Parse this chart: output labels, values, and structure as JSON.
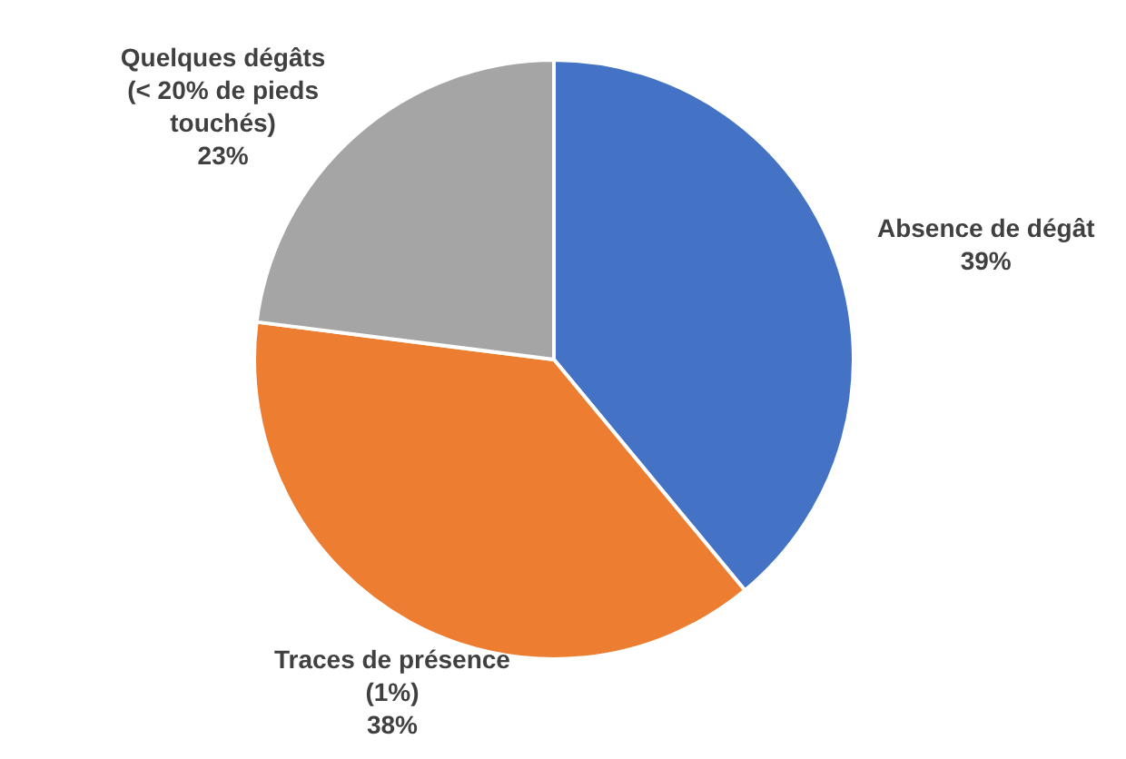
{
  "chart_data": {
    "type": "pie",
    "categories": [
      "Absence de dégât",
      "Traces de présence\n(1%)",
      "Quelques dégâts\n(< 20% de pieds\ntouchés)"
    ],
    "values": [
      39,
      38,
      23
    ],
    "colors": [
      "#4472c4",
      "#ed7d31",
      "#a5a5a5"
    ],
    "value_labels": [
      "39%",
      "38%",
      "23%"
    ]
  }
}
